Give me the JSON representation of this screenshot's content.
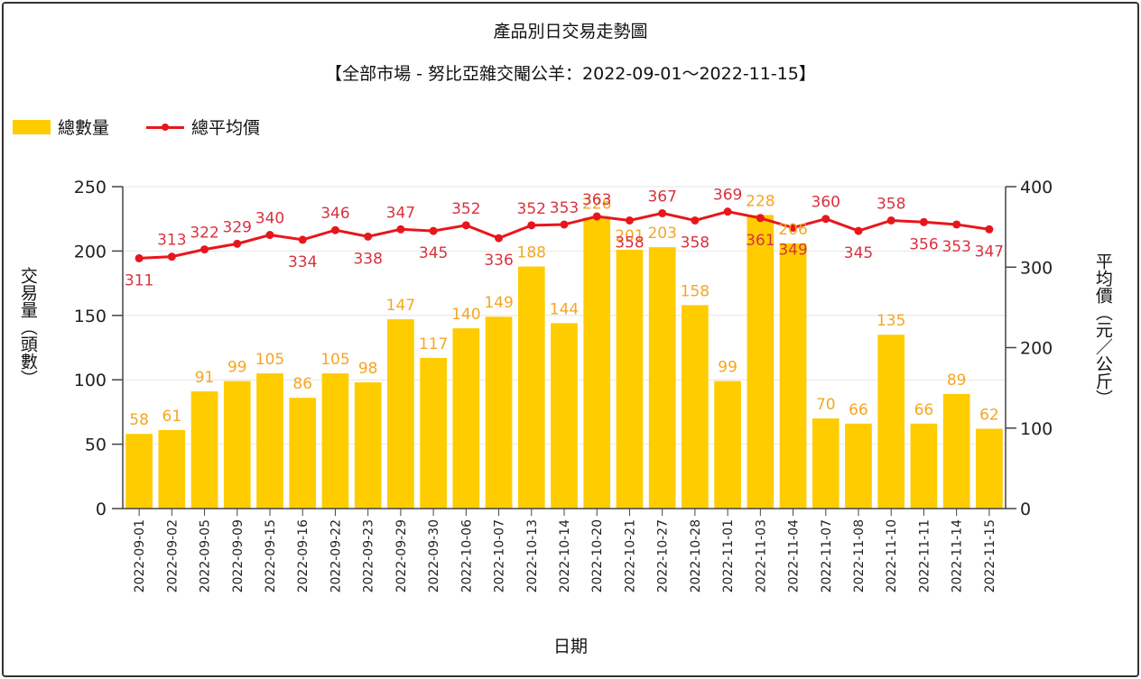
{
  "chart_data": {
    "type": "bar",
    "title": "產品別日交易走勢圖",
    "subtitle": "【全部市場 - 努比亞雜交閹公羊：2022-09-01～2022-11-15】",
    "xlabel": "日期",
    "ylabel_left": "交易量（頭數）",
    "ylabel_right": "平均價（元／公斤）",
    "ylim_left": [
      0,
      250
    ],
    "ylim_right": [
      0,
      400
    ],
    "yticks_left": [
      "0",
      "50",
      "100",
      "150",
      "200",
      "250"
    ],
    "yticks_right": [
      "0",
      "100",
      "200",
      "300",
      "400"
    ],
    "legend_placement": "top-left",
    "categories": [
      "2022-09-01",
      "2022-09-02",
      "2022-09-05",
      "2022-09-09",
      "2022-09-15",
      "2022-09-16",
      "2022-09-22",
      "2022-09-23",
      "2022-09-29",
      "2022-09-30",
      "2022-10-06",
      "2022-10-07",
      "2022-10-13",
      "2022-10-14",
      "2022-10-20",
      "2022-10-21",
      "2022-10-27",
      "2022-10-28",
      "2022-11-01",
      "2022-11-03",
      "2022-11-04",
      "2022-11-07",
      "2022-11-08",
      "2022-11-10",
      "2022-11-11",
      "2022-11-14",
      "2022-11-15"
    ],
    "series": [
      {
        "name": "總數量",
        "type": "bar",
        "axis": "left",
        "color": "#FFCC00",
        "label_color": "#F5A623",
        "values": [
          58,
          61,
          91,
          99,
          105,
          86,
          105,
          98,
          147,
          117,
          140,
          149,
          188,
          144,
          226,
          201,
          203,
          158,
          99,
          228,
          206,
          70,
          66,
          135,
          66,
          89,
          62
        ]
      },
      {
        "name": "總平均價",
        "type": "line",
        "axis": "right",
        "color": "#E8161C",
        "label_color": "#D8323F",
        "values": [
          311,
          313,
          322,
          329,
          340,
          334,
          346,
          338,
          347,
          345,
          352,
          336,
          352,
          353,
          363,
          358,
          367,
          358,
          369,
          361,
          349,
          360,
          345,
          358,
          356,
          353,
          347
        ]
      }
    ]
  }
}
